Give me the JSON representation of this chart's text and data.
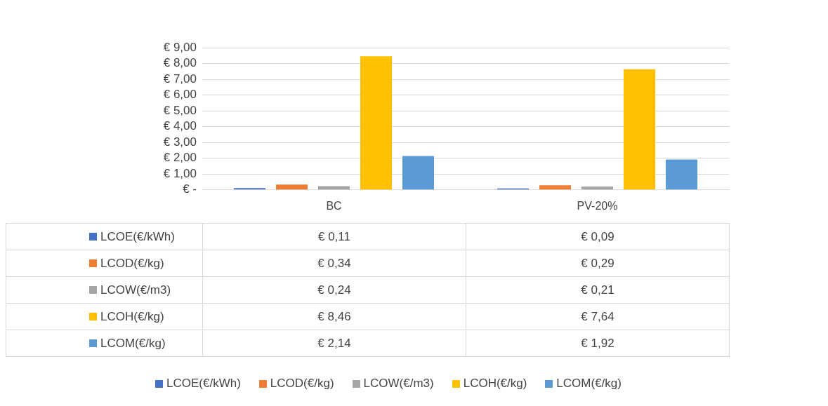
{
  "chart_data": {
    "type": "bar",
    "categories": [
      "BC",
      "PV-20%"
    ],
    "series": [
      {
        "name": "LCOE(€/kWh)",
        "color": "#4472c4",
        "values": [
          0.11,
          0.09
        ],
        "value_labels": [
          "€ 0,11",
          "€ 0,09"
        ]
      },
      {
        "name": "LCOD(€/kg)",
        "color": "#ed7d31",
        "values": [
          0.34,
          0.29
        ],
        "value_labels": [
          "€ 0,34",
          "€ 0,29"
        ]
      },
      {
        "name": "LCOW(€/m3)",
        "color": "#a5a5a5",
        "values": [
          0.24,
          0.21
        ],
        "value_labels": [
          "€ 0,24",
          "€ 0,21"
        ]
      },
      {
        "name": "LCOH(€/kg)",
        "color": "#ffc000",
        "values": [
          8.46,
          7.64
        ],
        "value_labels": [
          "€ 8,46",
          "€ 7,64"
        ]
      },
      {
        "name": "LCOM(€/kg)",
        "color": "#5b9bd5",
        "values": [
          2.14,
          1.92
        ],
        "value_labels": [
          "€ 2,14",
          "€ 1,92"
        ]
      }
    ],
    "ylim": [
      0,
      9
    ],
    "yticks": [
      {
        "value": 0,
        "label": "€ -"
      },
      {
        "value": 1,
        "label": "€ 1,00"
      },
      {
        "value": 2,
        "label": "€ 2,00"
      },
      {
        "value": 3,
        "label": "€ 3,00"
      },
      {
        "value": 4,
        "label": "€ 4,00"
      },
      {
        "value": 5,
        "label": "€ 5,00"
      },
      {
        "value": 6,
        "label": "€ 6,00"
      },
      {
        "value": 7,
        "label": "€ 7,00"
      },
      {
        "value": 8,
        "label": "€ 8,00"
      },
      {
        "value": 9,
        "label": "€ 9,00"
      }
    ],
    "grid": "y",
    "legend": "bottom"
  }
}
